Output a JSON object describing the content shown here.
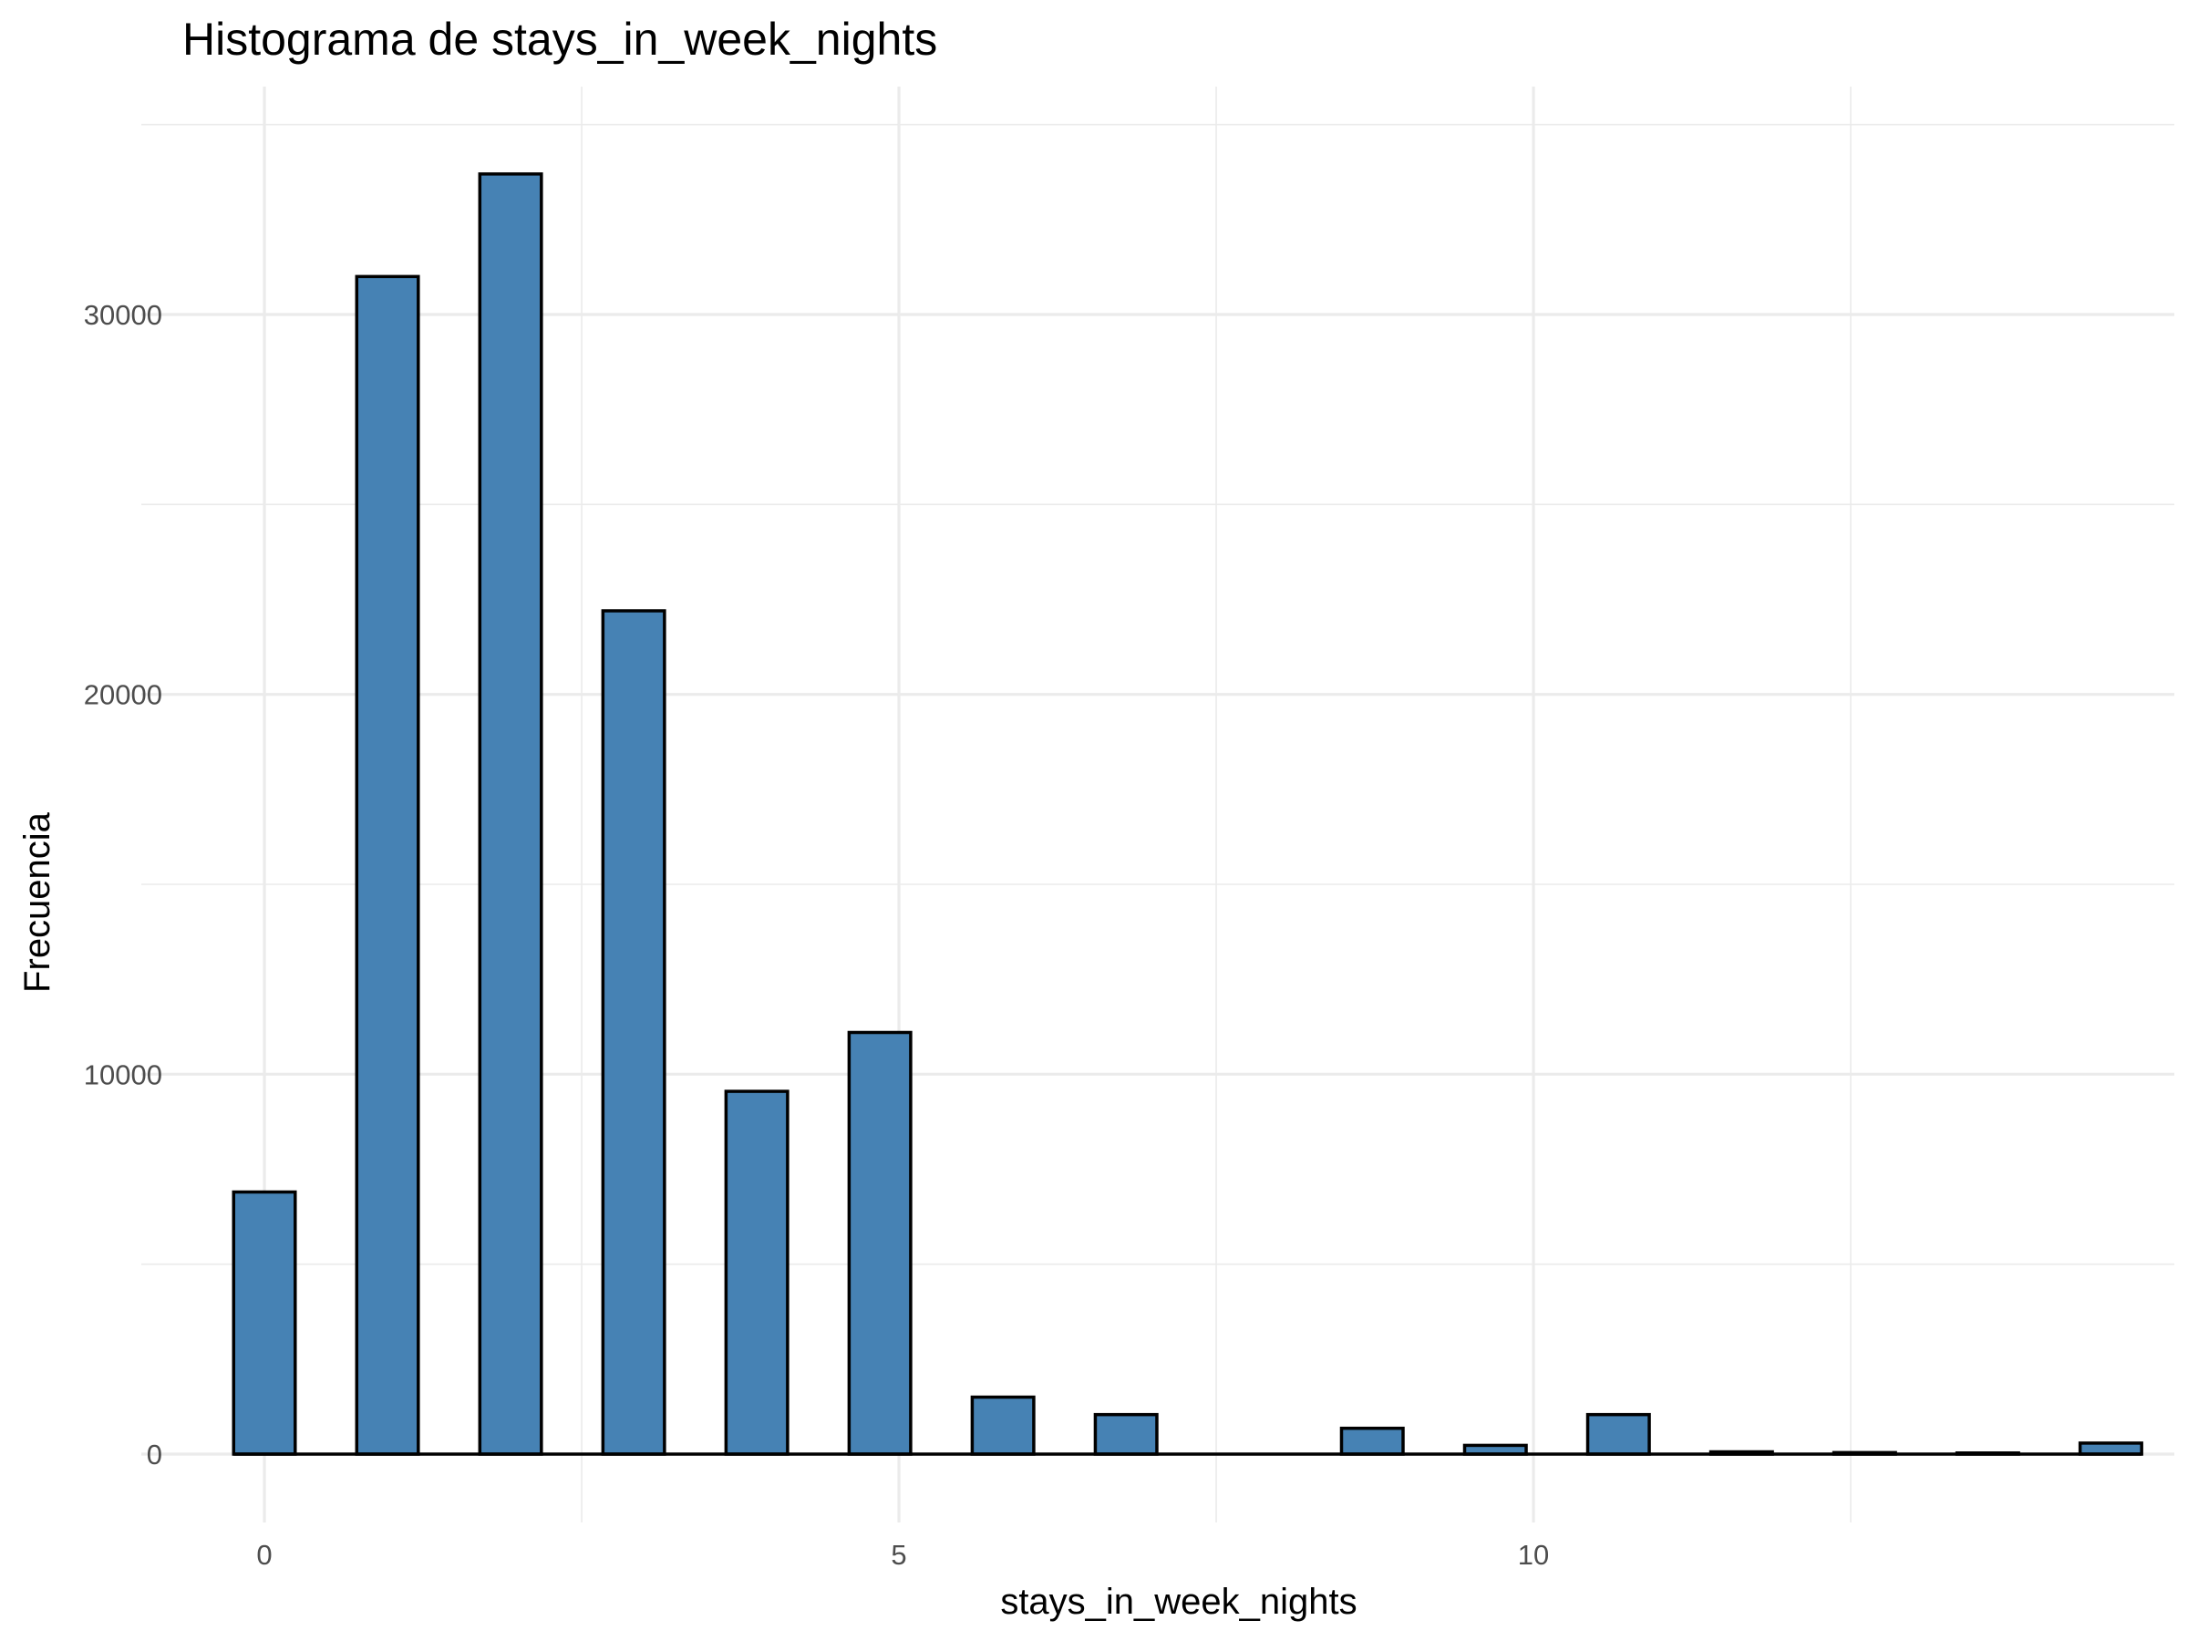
{
  "chart_data": {
    "type": "bar",
    "title": "Histograma de stays_in_week_nights",
    "xlabel": "stays_in_week_nights",
    "ylabel": "Frecuencia",
    "bin_width": 0.485,
    "x": [
      0.0,
      0.97,
      1.94,
      2.91,
      3.88,
      4.85,
      5.82,
      6.79,
      7.76,
      8.73,
      9.7,
      10.67,
      11.64,
      12.61,
      13.58,
      14.55
    ],
    "values": [
      6900,
      31000,
      33700,
      22200,
      9550,
      11100,
      1500,
      1040,
      0,
      680,
      230,
      1040,
      60,
      40,
      30,
      290
    ],
    "x_ticks": [
      0,
      5,
      10
    ],
    "x_tick_labels": [
      "0",
      "5",
      "10"
    ],
    "y_ticks": [
      0,
      10000,
      20000,
      30000
    ],
    "y_tick_labels": [
      "0",
      "10000",
      "20000",
      "30000"
    ],
    "xlim": [
      -0.97,
      15.05
    ],
    "ylim": [
      -1800,
      36000
    ],
    "grid": true,
    "colors": {
      "bar_fill": "#4682b4",
      "bar_outline": "#000000",
      "grid": "#ebebeb"
    }
  }
}
